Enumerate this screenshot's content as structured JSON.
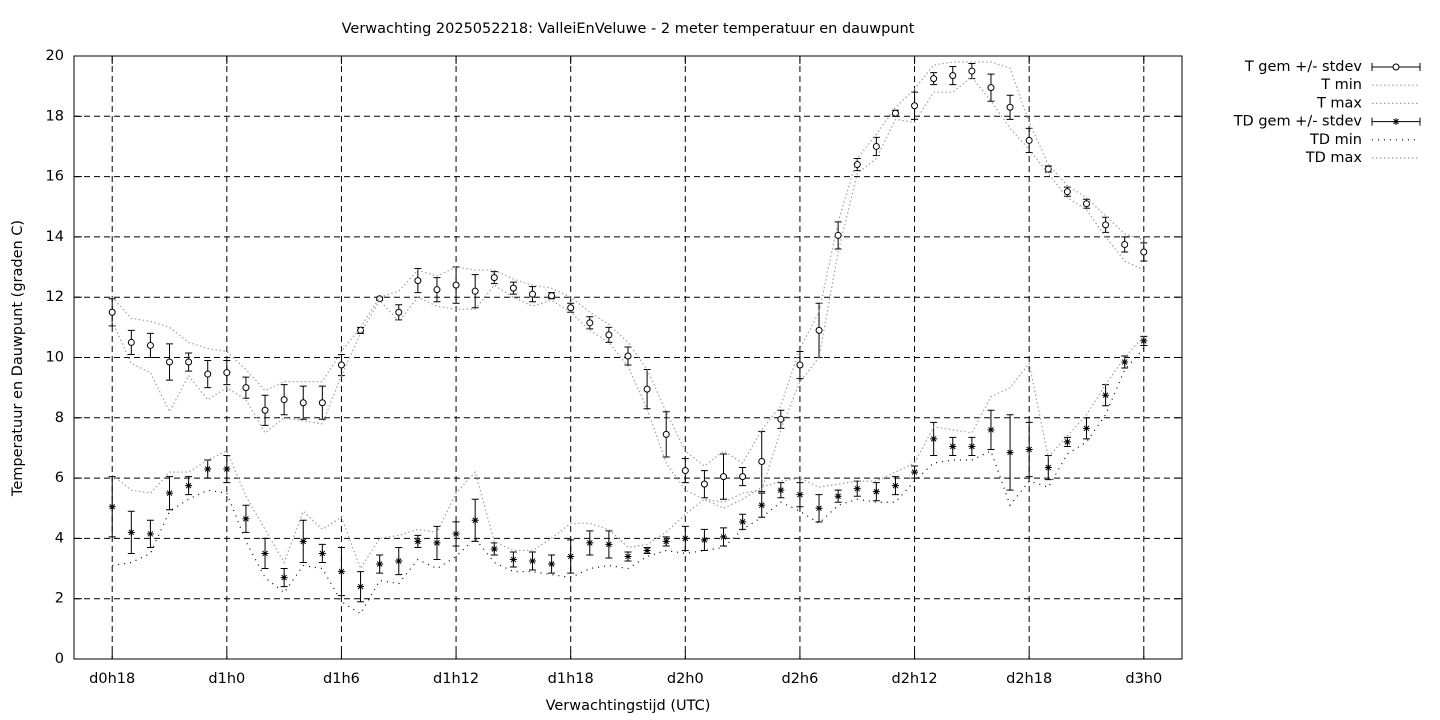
{
  "chart_data": {
    "type": "errorbar-line",
    "title": "Verwachting 2025052218: ValleiEnVeluwe - 2 meter temperatuur en dauwpunt",
    "x_label": "Verwachtingstijd (UTC)",
    "y_label": "Temperatuur en Dauwpunt (graden C)",
    "x": [
      18,
      19,
      20,
      21,
      22,
      23,
      24,
      25,
      26,
      27,
      28,
      29,
      30,
      31,
      32,
      33,
      34,
      35,
      36,
      37,
      38,
      39,
      40,
      41,
      42,
      43,
      44,
      45,
      46,
      47,
      48,
      49,
      50,
      51,
      52,
      53,
      54,
      55,
      56,
      57,
      58,
      59,
      60,
      61,
      62,
      63,
      64,
      65,
      66,
      67,
      68,
      69,
      70,
      71,
      72
    ],
    "xlim": [
      16,
      74
    ],
    "xticks": [
      {
        "value": 18,
        "label": "d0h18"
      },
      {
        "value": 24,
        "label": "d1h0"
      },
      {
        "value": 30,
        "label": "d1h6"
      },
      {
        "value": 36,
        "label": "d1h12"
      },
      {
        "value": 42,
        "label": "d1h18"
      },
      {
        "value": 48,
        "label": "d2h0"
      },
      {
        "value": 54,
        "label": "d2h6"
      },
      {
        "value": 60,
        "label": "d2h12"
      },
      {
        "value": 66,
        "label": "d2h18"
      },
      {
        "value": 72,
        "label": "d3h0"
      }
    ],
    "ylim": [
      0,
      20
    ],
    "yticks": [
      0,
      2,
      4,
      6,
      8,
      10,
      12,
      14,
      16,
      18,
      20
    ],
    "grid": true,
    "legend": "outside-top-right",
    "series": [
      {
        "name": "T gem +/- stdev",
        "color": "#000000",
        "marker": "circle",
        "values": [
          11.5,
          10.5,
          10.4,
          9.85,
          9.85,
          9.45,
          9.5,
          9.0,
          8.25,
          8.6,
          8.5,
          8.5,
          9.75,
          10.9,
          11.95,
          11.5,
          12.55,
          12.25,
          12.4,
          12.2,
          12.65,
          12.3,
          12.1,
          12.05,
          11.65,
          11.15,
          10.75,
          10.05,
          8.95,
          7.45,
          6.25,
          5.8,
          6.05,
          6.05,
          6.55,
          7.95,
          9.75,
          10.9,
          14.05,
          16.4,
          17.0,
          18.1,
          18.35,
          19.25,
          19.35,
          19.5,
          18.95,
          18.3,
          17.2,
          16.25,
          15.5,
          15.1,
          14.4,
          13.75,
          13.5
        ],
        "errors": [
          0.45,
          0.4,
          0.4,
          0.6,
          0.3,
          0.45,
          0.4,
          0.35,
          0.5,
          0.5,
          0.55,
          0.55,
          0.35,
          0.1,
          0.05,
          0.25,
          0.4,
          0.4,
          0.6,
          0.55,
          0.2,
          0.2,
          0.25,
          0.1,
          0.15,
          0.2,
          0.25,
          0.3,
          0.65,
          0.75,
          0.4,
          0.45,
          0.75,
          0.3,
          1.0,
          0.3,
          0.45,
          0.9,
          0.45,
          0.2,
          0.3,
          0.1,
          0.45,
          0.2,
          0.3,
          0.25,
          0.45,
          0.4,
          0.4,
          0.1,
          0.15,
          0.15,
          0.25,
          0.25,
          0.3
        ]
      },
      {
        "name": "T min",
        "color": "#a0a0a0",
        "line": "dotted",
        "values": [
          11.2,
          9.8,
          9.5,
          8.2,
          9.4,
          8.6,
          9.0,
          8.6,
          7.5,
          8.0,
          7.9,
          7.8,
          9.4,
          10.8,
          11.9,
          11.2,
          12.0,
          11.7,
          11.6,
          11.6,
          12.4,
          12.0,
          11.7,
          11.9,
          11.5,
          10.9,
          10.5,
          9.7,
          8.3,
          6.5,
          5.6,
          5.3,
          5.2,
          5.5,
          5.6,
          7.6,
          9.2,
          10.0,
          13.5,
          16.1,
          16.6,
          17.9,
          17.8,
          18.8,
          18.8,
          19.3,
          18.5,
          17.6,
          16.9,
          16.1,
          15.3,
          14.9,
          14.0,
          13.2,
          12.9
        ]
      },
      {
        "name": "T max",
        "color": "#a0a0a0",
        "line": "dotted",
        "values": [
          12.0,
          11.3,
          11.2,
          11.0,
          10.5,
          10.3,
          10.2,
          9.6,
          8.9,
          9.2,
          9.2,
          9.2,
          10.2,
          11.0,
          12.0,
          12.2,
          12.9,
          12.7,
          13.0,
          12.9,
          12.9,
          12.6,
          12.4,
          12.3,
          12.0,
          11.5,
          11.1,
          10.5,
          9.6,
          8.2,
          6.9,
          6.4,
          6.9,
          6.5,
          7.6,
          8.4,
          10.3,
          11.5,
          14.5,
          16.6,
          17.4,
          18.3,
          18.9,
          19.7,
          19.8,
          19.8,
          19.8,
          19.6,
          17.8,
          16.4,
          15.7,
          15.3,
          14.7,
          14.1,
          13.9
        ]
      },
      {
        "name": "TD gem +/- stdev",
        "color": "#000000",
        "marker": "asterisk",
        "values": [
          5.05,
          4.2,
          4.15,
          5.5,
          5.75,
          6.3,
          6.3,
          4.65,
          3.5,
          2.7,
          3.9,
          3.5,
          2.9,
          2.4,
          3.15,
          3.25,
          3.9,
          3.85,
          4.15,
          4.6,
          3.65,
          3.3,
          3.25,
          3.15,
          3.4,
          3.85,
          3.8,
          3.4,
          3.6,
          3.9,
          4.0,
          3.95,
          4.05,
          4.55,
          5.1,
          5.6,
          5.45,
          5.0,
          5.4,
          5.65,
          5.55,
          5.75,
          6.2,
          7.3,
          7.05,
          7.05,
          7.6,
          6.85,
          6.95,
          6.35,
          7.2,
          7.65,
          8.75,
          9.85,
          10.55
        ],
        "errors": [
          1.0,
          0.7,
          0.45,
          0.55,
          0.3,
          0.3,
          0.45,
          0.45,
          0.5,
          0.3,
          0.7,
          0.3,
          0.8,
          0.5,
          0.3,
          0.45,
          0.2,
          0.55,
          0.4,
          0.7,
          0.2,
          0.25,
          0.3,
          0.3,
          0.55,
          0.4,
          0.45,
          0.15,
          0.1,
          0.15,
          0.4,
          0.35,
          0.3,
          0.25,
          0.4,
          0.25,
          0.4,
          0.45,
          0.2,
          0.25,
          0.3,
          0.3,
          0.2,
          0.55,
          0.3,
          0.3,
          0.65,
          1.25,
          0.9,
          0.4,
          0.15,
          0.35,
          0.35,
          0.2,
          0.15
        ]
      },
      {
        "name": "TD min",
        "color": "#000000",
        "line": "dotted",
        "values": [
          3.1,
          3.2,
          3.5,
          4.9,
          5.3,
          5.6,
          5.5,
          3.9,
          2.7,
          2.2,
          3.1,
          3.0,
          1.9,
          1.5,
          2.6,
          2.5,
          3.3,
          3.0,
          3.4,
          4.0,
          3.2,
          2.9,
          2.9,
          2.8,
          2.7,
          3.0,
          3.1,
          3.0,
          3.4,
          3.6,
          3.5,
          3.6,
          3.7,
          4.3,
          4.7,
          5.2,
          4.9,
          4.5,
          5.1,
          5.3,
          5.2,
          5.2,
          5.9,
          6.5,
          6.6,
          6.6,
          6.9,
          5.1,
          5.9,
          5.7,
          6.8,
          7.2,
          8.1,
          9.6,
          10.3
        ]
      },
      {
        "name": "TD max",
        "color": "#a0a0a0",
        "line": "dotted",
        "values": [
          6.1,
          5.6,
          5.5,
          6.2,
          6.2,
          6.6,
          6.9,
          5.4,
          4.3,
          3.2,
          4.9,
          4.3,
          4.7,
          3.0,
          4.0,
          4.1,
          4.3,
          4.2,
          5.5,
          6.2,
          3.9,
          3.6,
          3.6,
          4.0,
          4.5,
          4.5,
          4.3,
          3.7,
          3.8,
          4.2,
          4.8,
          5.3,
          5.0,
          5.3,
          5.7,
          5.9,
          6.0,
          5.7,
          5.8,
          5.9,
          5.9,
          6.2,
          6.5,
          7.7,
          7.6,
          7.5,
          8.7,
          9.0,
          9.8,
          6.7,
          7.4,
          8.1,
          9.1,
          10.0,
          10.7
        ]
      }
    ]
  }
}
